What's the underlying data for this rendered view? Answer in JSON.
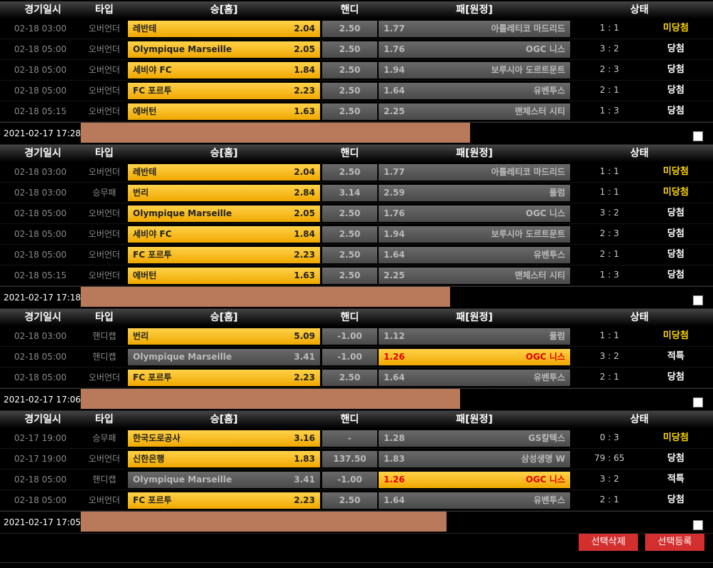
{
  "columns": [
    "경기일시",
    "타입",
    "승[홈]",
    "핸디",
    "패[원정]",
    "상태"
  ],
  "groups": [
    {
      "rows": [
        {
          "time": "02-18 03:00",
          "type": "오버언더",
          "home": "레반테",
          "home_odds": "2.04",
          "handicap": "2.50",
          "away_odds": "1.77",
          "away": "아틀레티코 마드리드",
          "score": "1 : 1",
          "status": "미당첨",
          "status_color": "#ffd700",
          "pick": "home"
        },
        {
          "time": "02-18 05:00",
          "type": "오버언더",
          "home": "Olympique Marseille",
          "home_odds": "2.05",
          "handicap": "2.50",
          "away_odds": "1.76",
          "away": "OGC 니스",
          "score": "3 : 2",
          "status": "당첨",
          "status_color": "#ffffff",
          "pick": "home"
        },
        {
          "time": "02-18 05:00",
          "type": "오버언더",
          "home": "세비야 FC",
          "home_odds": "1.84",
          "handicap": "2.50",
          "away_odds": "1.94",
          "away": "보루시아 도르트문트",
          "score": "2 : 3",
          "status": "당첨",
          "status_color": "#ffffff",
          "pick": "home"
        },
        {
          "time": "02-18 05:00",
          "type": "오버언더",
          "home": "FC 포르투",
          "home_odds": "2.23",
          "handicap": "2.50",
          "away_odds": "1.64",
          "away": "유벤투스",
          "score": "2 : 1",
          "status": "당첨",
          "status_color": "#ffffff",
          "pick": "home"
        },
        {
          "time": "02-18 05:15",
          "type": "오버언더",
          "home": "에버턴",
          "home_odds": "1.63",
          "handicap": "2.50",
          "away_odds": "2.25",
          "away": "맨체스터 시티",
          "score": "1 : 3",
          "status": "당첨",
          "status_color": "#ffffff",
          "pick": "home"
        }
      ],
      "footer_date": "2021-02-17 17:28"
    },
    {
      "rows": [
        {
          "time": "02-18 03:00",
          "type": "오버언더",
          "home": "레반테",
          "home_odds": "2.04",
          "handicap": "2.50",
          "away_odds": "1.77",
          "away": "아틀레티코 마드리드",
          "score": "1 : 1",
          "status": "미당첨",
          "status_color": "#ffd700",
          "pick": "home"
        },
        {
          "time": "02-18 03:00",
          "type": "승무패",
          "home": "번리",
          "home_odds": "2.84",
          "handicap": "3.14",
          "away_odds": "2.59",
          "away": "풀럼",
          "score": "1 : 1",
          "status": "미당첨",
          "status_color": "#ffd700",
          "pick": "home"
        },
        {
          "time": "02-18 05:00",
          "type": "오버언더",
          "home": "Olympique Marseille",
          "home_odds": "2.05",
          "handicap": "2.50",
          "away_odds": "1.76",
          "away": "OGC 니스",
          "score": "3 : 2",
          "status": "당첨",
          "status_color": "#ffffff",
          "pick": "home"
        },
        {
          "time": "02-18 05:00",
          "type": "오버언더",
          "home": "세비야 FC",
          "home_odds": "1.84",
          "handicap": "2.50",
          "away_odds": "1.94",
          "away": "보루시아 도르트문트",
          "score": "2 : 3",
          "status": "당첨",
          "status_color": "#ffffff",
          "pick": "home"
        },
        {
          "time": "02-18 05:00",
          "type": "오버언더",
          "home": "FC 포르투",
          "home_odds": "2.23",
          "handicap": "2.50",
          "away_odds": "1.64",
          "away": "유벤투스",
          "score": "2 : 1",
          "status": "당첨",
          "status_color": "#ffffff",
          "pick": "home"
        },
        {
          "time": "02-18 05:15",
          "type": "오버언더",
          "home": "에버턴",
          "home_odds": "1.63",
          "handicap": "2.50",
          "away_odds": "2.25",
          "away": "맨체스터 시티",
          "score": "1 : 3",
          "status": "당첨",
          "status_color": "#ffffff",
          "pick": "home"
        }
      ],
      "footer_date": "2021-02-17 17:18"
    },
    {
      "rows": [
        {
          "time": "02-18 03:00",
          "type": "핸디캡",
          "home": "번리",
          "home_odds": "5.09",
          "handicap": "-1.00",
          "away_odds": "1.12",
          "away": "풀럼",
          "score": "1 : 1",
          "status": "미당첨",
          "status_color": "#ffd700",
          "pick": "home"
        },
        {
          "time": "02-18 05:00",
          "type": "핸디캡",
          "home": "Olympique Marseille",
          "home_odds": "3.41",
          "handicap": "-1.00",
          "away_odds": "1.26",
          "away": "OGC 니스",
          "score": "3 : 2",
          "status": "적특",
          "status_color": "#ffffff",
          "pick": "away"
        },
        {
          "time": "02-18 05:00",
          "type": "오버언더",
          "home": "FC 포르투",
          "home_odds": "2.23",
          "handicap": "2.50",
          "away_odds": "1.64",
          "away": "유벤투스",
          "score": "2 : 1",
          "status": "당첨",
          "status_color": "#ffffff",
          "pick": "home"
        }
      ],
      "footer_date": "2021-02-17 17:06"
    },
    {
      "rows": [
        {
          "time": "02-17 19:00",
          "type": "승무패",
          "home": "한국도로공사",
          "home_odds": "3.16",
          "handicap": "-",
          "away_odds": "1.28",
          "away": "GS칼텍스",
          "score": "0 : 3",
          "status": "미당첨",
          "status_color": "#ffd700",
          "pick": "home"
        },
        {
          "time": "02-17 19:00",
          "type": "오버언더",
          "home": "신한은행",
          "home_odds": "1.83",
          "handicap": "137.50",
          "away_odds": "1.83",
          "away": "삼성생명 W",
          "score": "79 : 65",
          "status": "당첨",
          "status_color": "#ffffff",
          "pick": "home"
        },
        {
          "time": "02-18 05:00",
          "type": "핸디캡",
          "home": "Olympique Marseille",
          "home_odds": "3.41",
          "handicap": "-1.00",
          "away_odds": "1.26",
          "away": "OGC 니스",
          "score": "3 : 2",
          "status": "적특",
          "status_color": "#ffffff",
          "pick": "away"
        },
        {
          "time": "02-18 05:00",
          "type": "오버언더",
          "home": "FC 포르투",
          "home_odds": "2.23",
          "handicap": "2.50",
          "away_odds": "1.64",
          "away": "유벤투스",
          "score": "2 : 1",
          "status": "당첨",
          "status_color": "#ffffff",
          "pick": "home"
        }
      ],
      "footer_date": "2021-02-17 17:05"
    }
  ],
  "buttons": [
    "선택삭제",
    "선택등록"
  ]
}
